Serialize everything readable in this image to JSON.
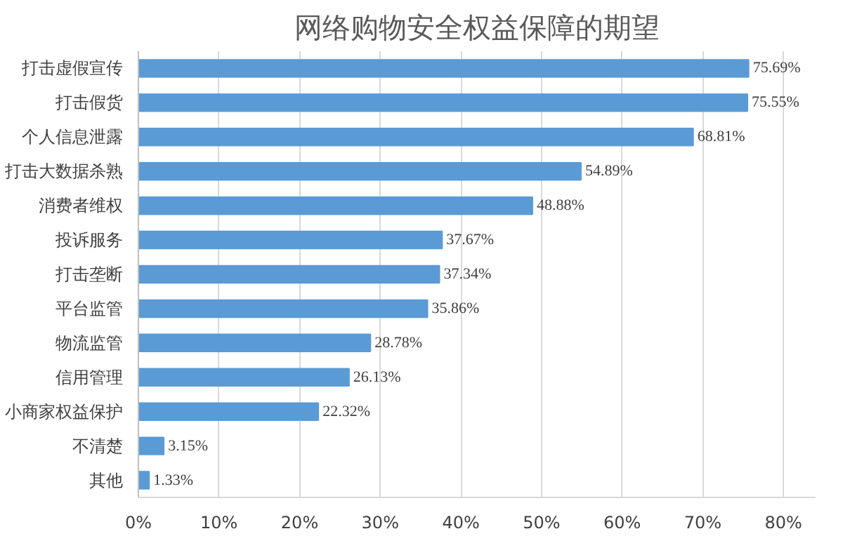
{
  "chart_data": {
    "type": "bar",
    "orientation": "horizontal",
    "title": "网络购物安全权益保障的期望",
    "categories": [
      "打击虚假宣传",
      "打击假货",
      "个人信息泄露",
      "打击大数据杀熟",
      "消费者维权",
      "投诉服务",
      "打击垄断",
      "平台监管",
      "物流监管",
      "信用管理",
      "小商家权益保护",
      "不清楚",
      "其他"
    ],
    "values": [
      75.69,
      75.55,
      68.81,
      54.89,
      48.88,
      37.67,
      37.34,
      35.86,
      28.78,
      26.13,
      22.32,
      3.15,
      1.33
    ],
    "value_labels": [
      "75.69%",
      "75.55%",
      "68.81%",
      "54.89%",
      "48.88%",
      "37.67%",
      "37.34%",
      "35.86%",
      "28.78%",
      "26.13%",
      "22.32%",
      "3.15%",
      "1.33%"
    ],
    "color": "#5b9bd5",
    "xlim": [
      0,
      84
    ],
    "xticks": [
      {
        "value": 0,
        "label": "0%"
      },
      {
        "value": 10,
        "label": "10%"
      },
      {
        "value": 20,
        "label": "20%"
      },
      {
        "value": 30,
        "label": "30%"
      },
      {
        "value": 40,
        "label": "40%"
      },
      {
        "value": 50,
        "label": "50%"
      },
      {
        "value": 60,
        "label": "60%"
      },
      {
        "value": 70,
        "label": "70%"
      },
      {
        "value": 80,
        "label": "80%"
      }
    ],
    "grid": "x"
  }
}
